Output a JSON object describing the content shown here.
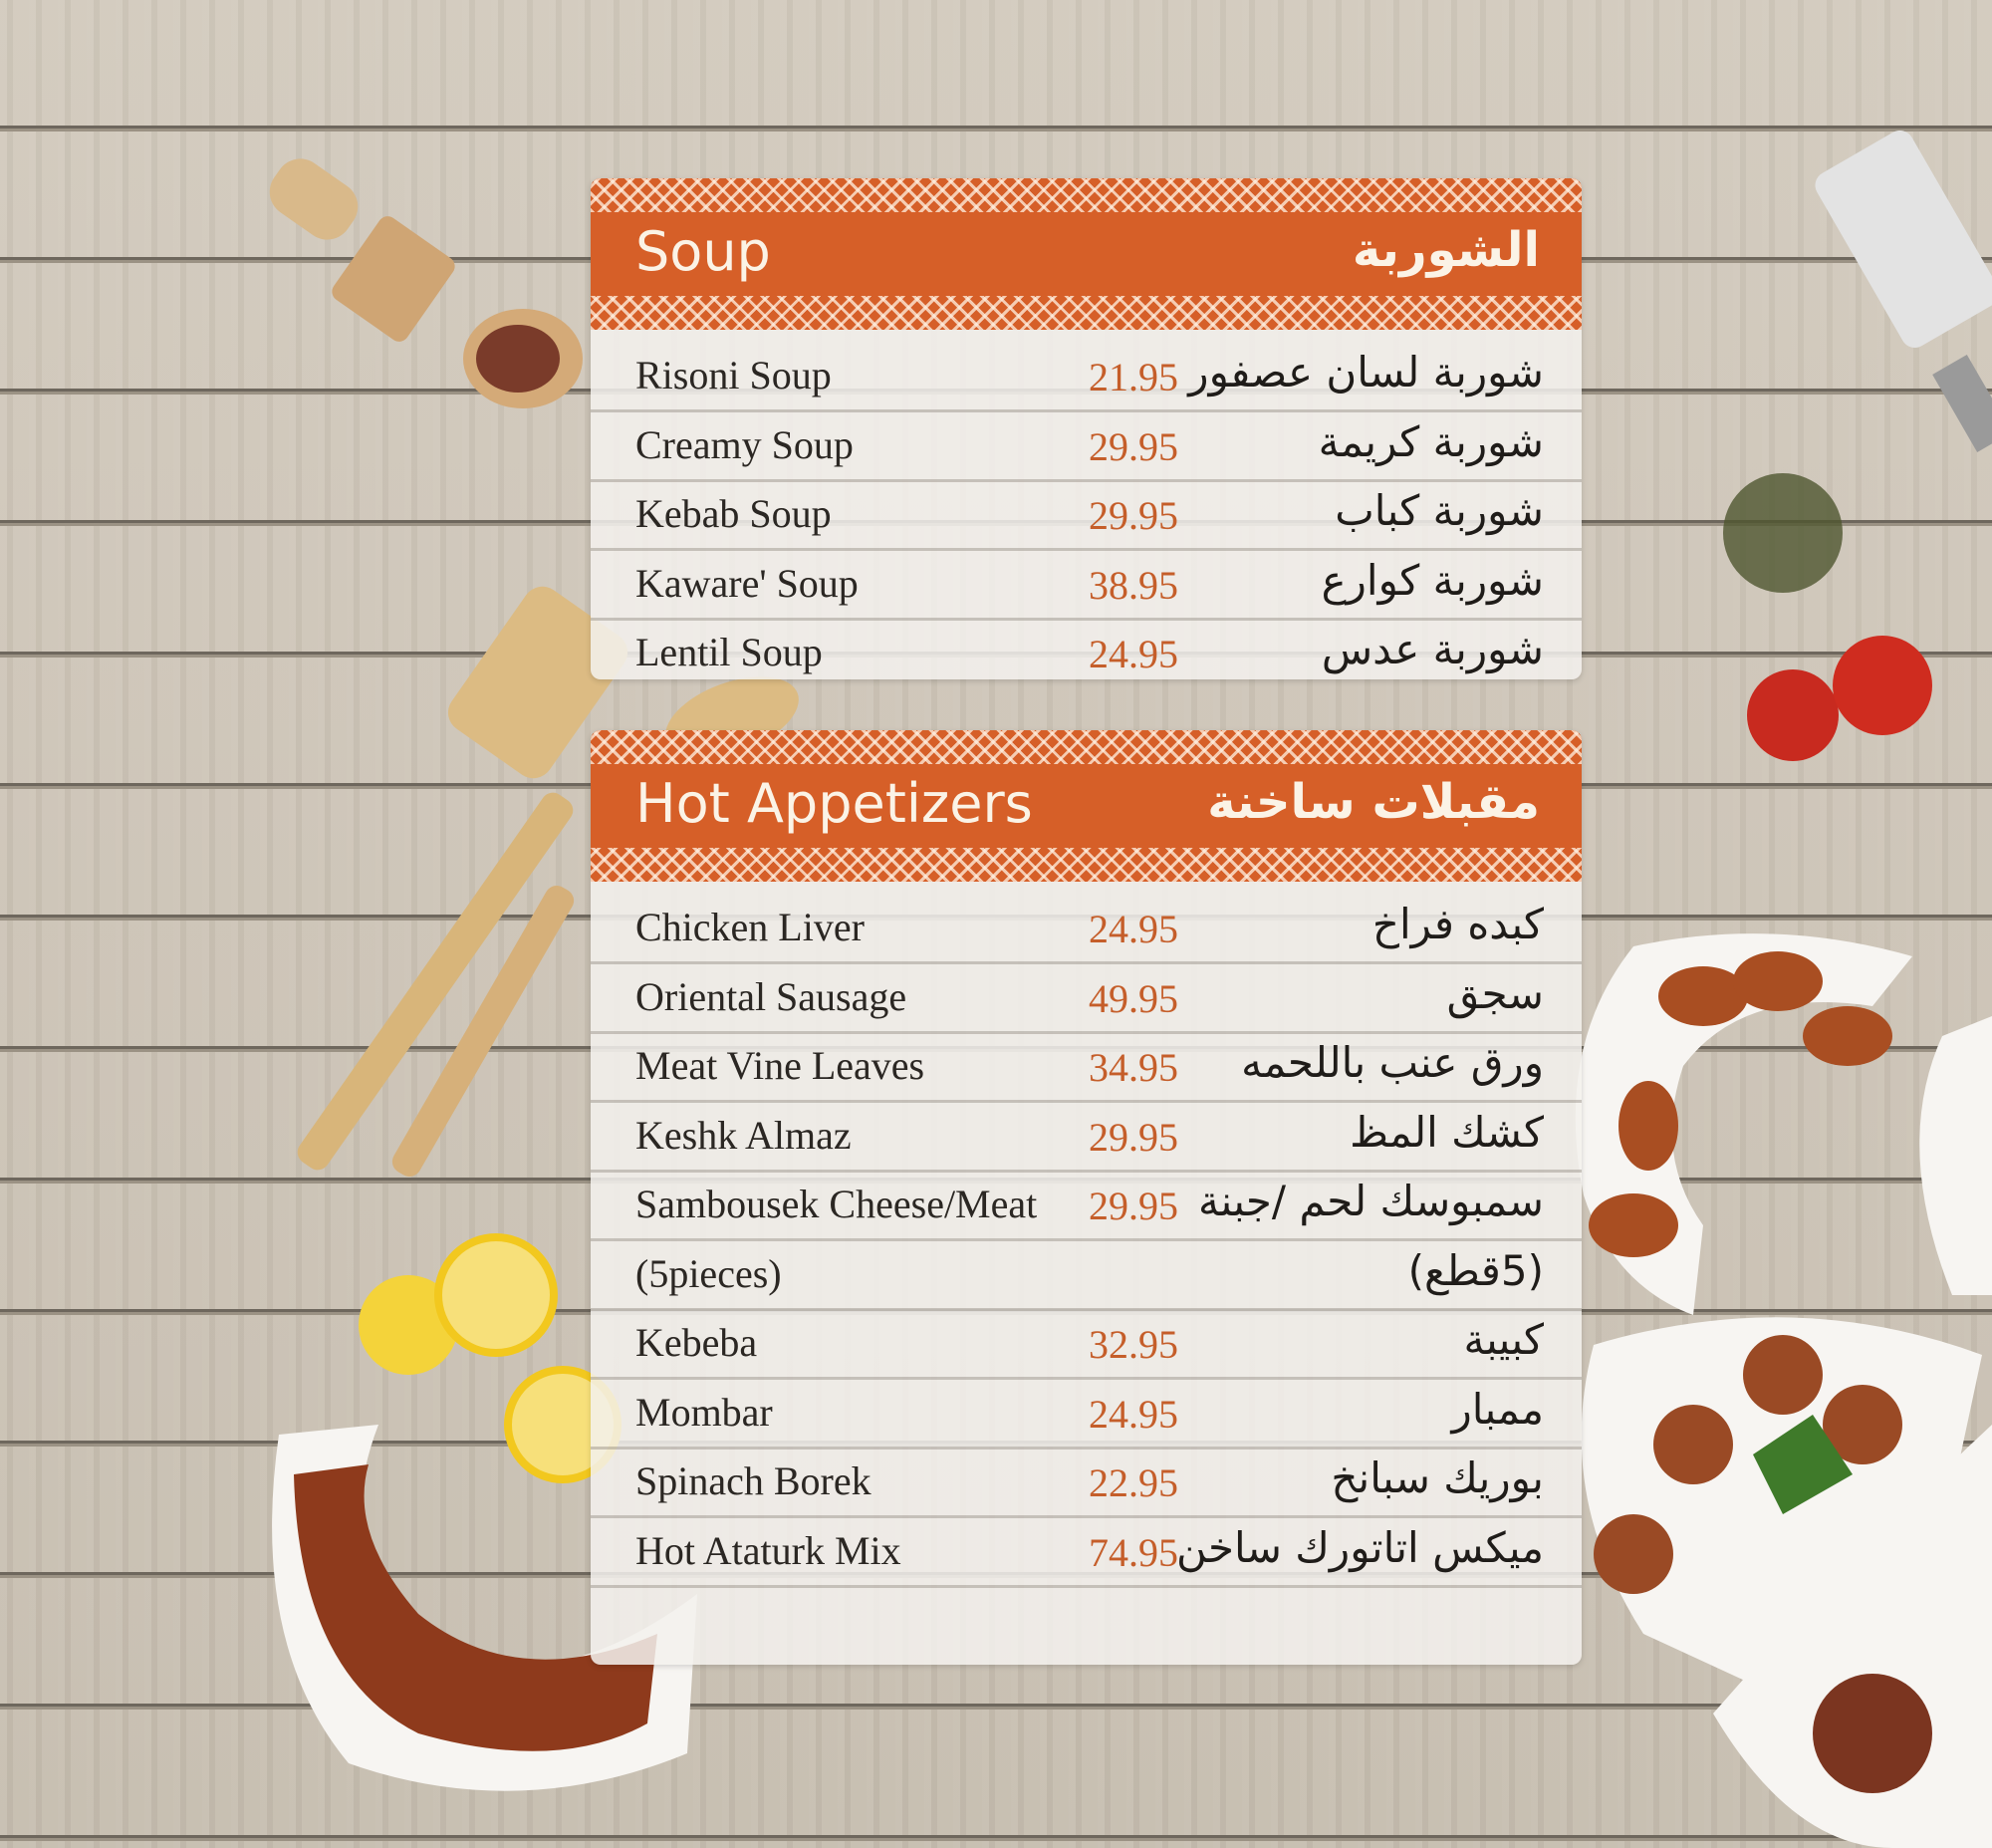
{
  "sections": [
    {
      "title_en": "Soup",
      "title_ar": "الشوربة",
      "items": [
        {
          "name": "Risoni Soup",
          "price": "21.95",
          "name_ar": "شوربة لسان عصفور"
        },
        {
          "name": "Creamy Soup",
          "price": "29.95",
          "name_ar": "شوربة كريمة"
        },
        {
          "name": "Kebab Soup",
          "price": "29.95",
          "name_ar": "شوربة كباب"
        },
        {
          "name": "Kaware' Soup",
          "price": "38.95",
          "name_ar": "شوربة كوارع"
        },
        {
          "name": "Lentil Soup",
          "price": "24.95",
          "name_ar": "شوربة عدس"
        }
      ]
    },
    {
      "title_en": "Hot Appetizers",
      "title_ar": "مقبلات ساخنة",
      "items": [
        {
          "name": "Chicken Liver",
          "price": "24.95",
          "name_ar": "كبده فراخ"
        },
        {
          "name": "Oriental Sausage",
          "price": "49.95",
          "name_ar": "سجق"
        },
        {
          "name": "Meat Vine Leaves",
          "price": "34.95",
          "name_ar": "ورق عنب باللحمه"
        },
        {
          "name": "Keshk Almaz",
          "price": "29.95",
          "name_ar": "كشك المظ"
        },
        {
          "name": "Sambousek Cheese/Meat",
          "price": "29.95",
          "name_ar": "سمبوسك لحم /جبنة"
        },
        {
          "name": "(5pieces)",
          "price": "",
          "name_ar": "(5قطع)"
        },
        {
          "name": "Kebeba",
          "price": "32.95",
          "name_ar": "كبيبة"
        },
        {
          "name": "Mombar",
          "price": "24.95",
          "name_ar": "ممبار"
        },
        {
          "name": "Spinach Borek",
          "price": "22.95",
          "name_ar": "بوريك سبانخ"
        },
        {
          "name": "Hot Ataturk Mix",
          "price": "74.95",
          "name_ar": "ميكس اتاتورك ساخن"
        }
      ]
    }
  ],
  "colors": {
    "header": "#d65f28",
    "price": "#c55e2a",
    "text": "#2b2723"
  }
}
